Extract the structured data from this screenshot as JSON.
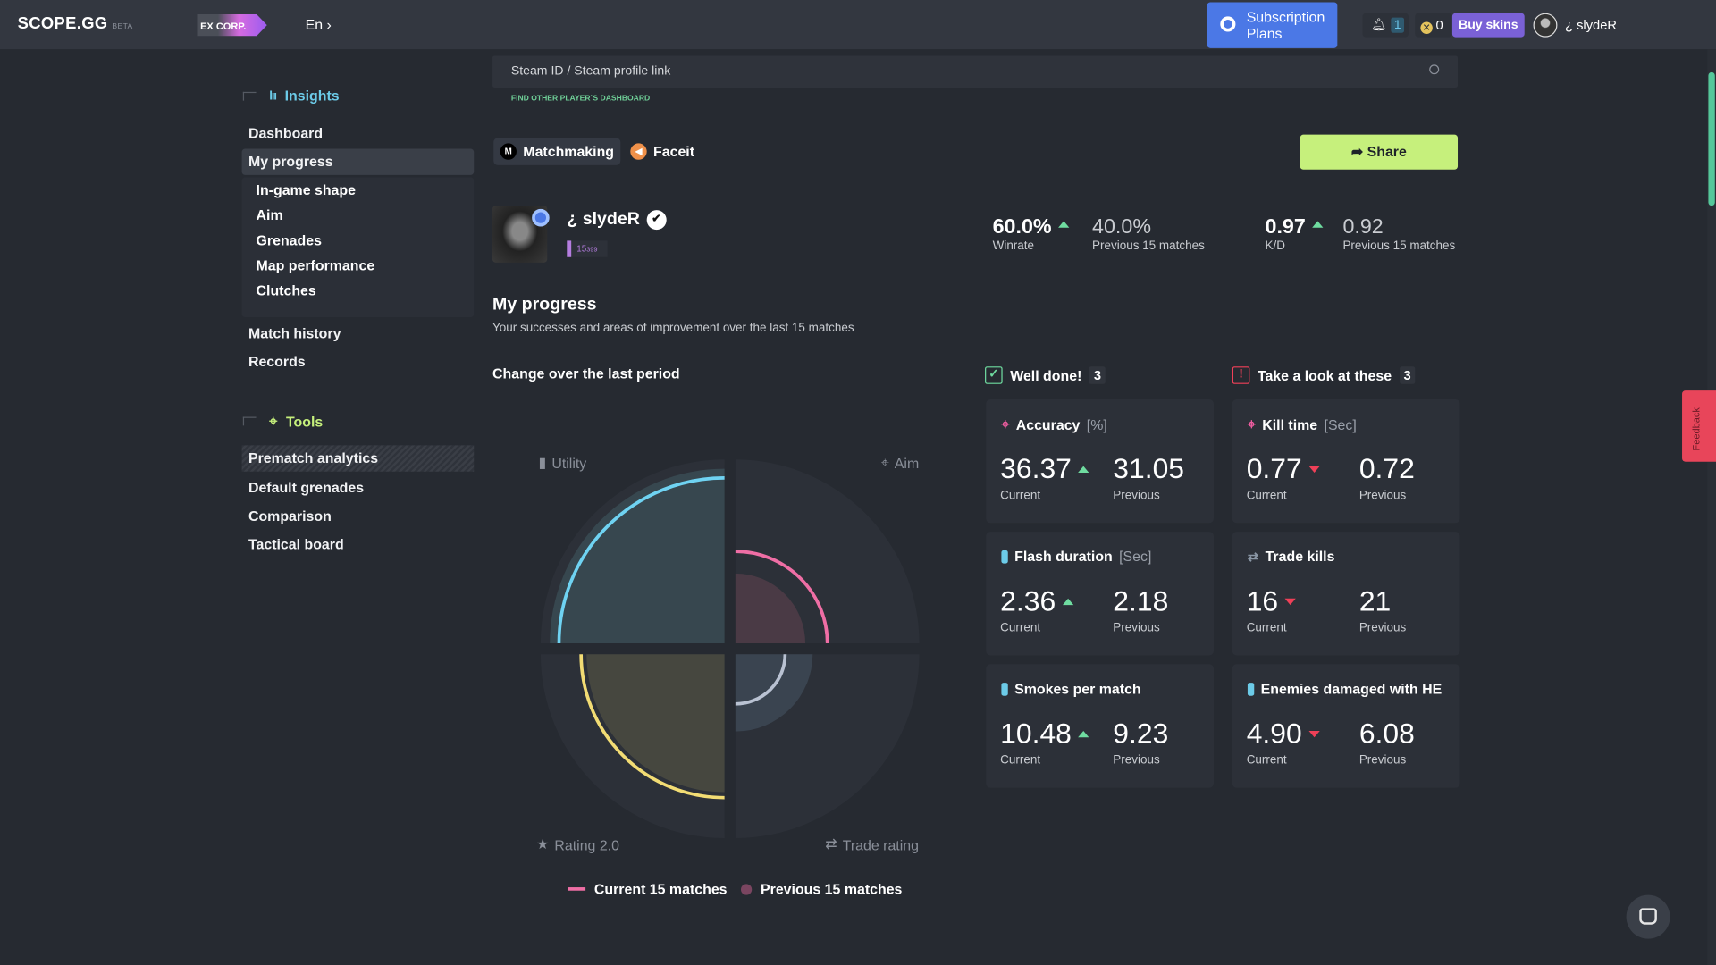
{
  "header": {
    "logo": "SCOPE.GG",
    "beta": "BETA",
    "partner": "EX CORP.",
    "language": "En",
    "subscription": "Subscription Plans",
    "notifications": "1",
    "coins": "0",
    "buy_skins": "Buy skins",
    "username": "¿ slydeR"
  },
  "search": {
    "placeholder": "Steam ID / Steam profile link",
    "hint": "FIND OTHER PLAYER`S DASHBOARD"
  },
  "sidebar": {
    "insights_title": "Insights",
    "items": [
      "Dashboard",
      "My progress",
      "In-game shape",
      "Aim",
      "Grenades",
      "Map performance",
      "Clutches",
      "Match history",
      "Records"
    ],
    "tools_title": "Tools",
    "tools": [
      "Prematch analytics",
      "Default grenades",
      "Comparison",
      "Tactical board"
    ]
  },
  "tabs": [
    "Matchmaking",
    "Faceit"
  ],
  "share": "Share",
  "profile": {
    "name": "¿ slydeR",
    "rank": "15",
    "rank_sub": "399"
  },
  "stats": {
    "winrate": "60.0%",
    "winrate_label": "Winrate",
    "winrate_prev": "40.0%",
    "prev_label": "Previous 15 matches",
    "kd": "0.97",
    "kd_label": "K/D",
    "kd_prev": "0.92"
  },
  "progress": {
    "title": "My progress",
    "desc": "Your successes and areas of improvement over the last 15 matches",
    "change_title": "Change over the last period"
  },
  "groups": {
    "good": "Well done!",
    "good_count": "3",
    "bad": "Take a look at these",
    "bad_count": "3"
  },
  "cards": [
    {
      "title": "Accuracy",
      "unit": "[%]",
      "current": "36.37",
      "previous": "31.05",
      "trend": "up",
      "icon": "crosshair"
    },
    {
      "title": "Kill time",
      "unit": "[Sec]",
      "current": "0.77",
      "previous": "0.72",
      "trend": "down",
      "icon": "crosshair"
    },
    {
      "title": "Flash duration",
      "unit": "[Sec]",
      "current": "2.36",
      "previous": "2.18",
      "trend": "up",
      "icon": "grenade"
    },
    {
      "title": "Trade kills",
      "unit": "",
      "current": "16",
      "previous": "21",
      "trend": "down",
      "icon": "trade-arrows"
    },
    {
      "title": "Smokes per match",
      "unit": "",
      "current": "10.48",
      "previous": "9.23",
      "trend": "up",
      "icon": "grenade"
    },
    {
      "title": "Enemies damaged with HE",
      "unit": "",
      "current": "4.90",
      "previous": "6.08",
      "trend": "down",
      "icon": "grenade"
    }
  ],
  "card_labels": {
    "current": "Current",
    "previous": "Previous"
  },
  "chart_data": {
    "type": "radial-quadrant",
    "categories": [
      "Utility",
      "Aim",
      "Rating 2.0",
      "Trade rating"
    ],
    "series": [
      {
        "name": "Current 15 matches",
        "values": [
          0.9,
          0.5,
          0.78,
          0.27
        ]
      },
      {
        "name": "Previous 15 matches",
        "values": [
          0.95,
          0.38,
          0.75,
          0.42
        ]
      }
    ],
    "colors": [
      "#6fd3f2",
      "#ef6ea5",
      "#f2dc74",
      "#b9c2d2"
    ],
    "prev_colors": [
      "#37474f",
      "#4a3a45",
      "#46473f",
      "#3a4450"
    ],
    "legend": "bottom"
  },
  "feedback": "Feedback"
}
